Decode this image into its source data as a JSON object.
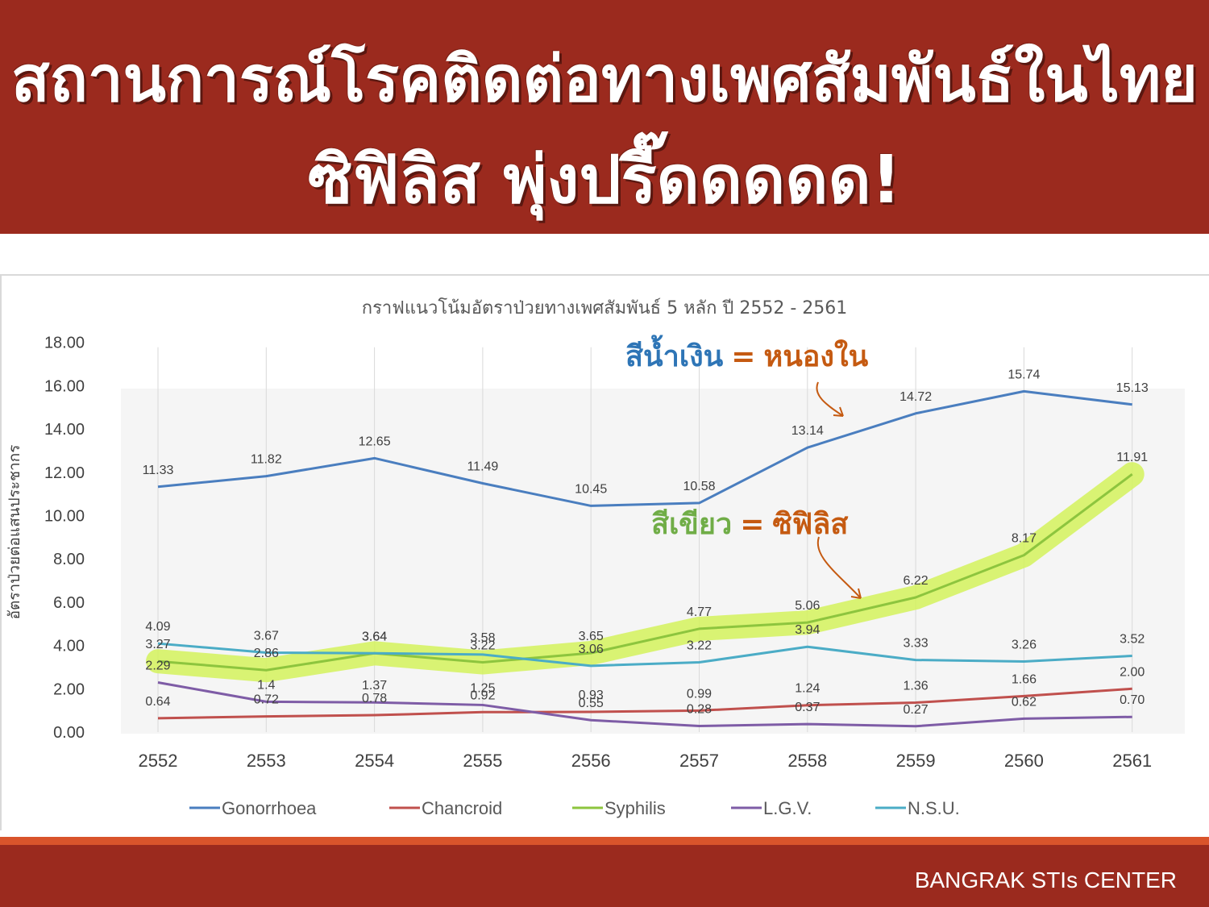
{
  "header": {
    "line1": "สถานการณ์โรคติดต่อทางเพศสัมพันธ์ในไทย",
    "line2": "ซิฟิลิส พุ่งปรี๊ดดดดด!"
  },
  "footer": {
    "text": "BANGRAK STIs CENTER"
  },
  "annotations": {
    "blue_prefix": "สีน้ำเงิน",
    "blue_eq": "=",
    "blue_name": "หนองใน",
    "green_prefix": "สีเขียว",
    "green_eq": "=",
    "green_name": "ซิฟิลิส"
  },
  "colors": {
    "banner": "#9b2a1e",
    "accent_stripe": "#d9542b",
    "annotation_blue": "#2e75b6",
    "annotation_orange": "#c55a11",
    "annotation_green": "#70ad47",
    "highlight": "#d4f25c"
  },
  "chart_data": {
    "type": "line",
    "title": "กราฟแนวโน้มอัตราป่วยทางเพศสัมพันธ์ 5 หลัก ปี 2552 - 2561",
    "ylabel": "อัตราป่วยต่อแสนประชากร",
    "xlabel": "",
    "categories": [
      "2552",
      "2553",
      "2554",
      "2555",
      "2556",
      "2557",
      "2558",
      "2559",
      "2560",
      "2561"
    ],
    "ylim": [
      0,
      18
    ],
    "yticks": [
      "0.00",
      "2.00",
      "4.00",
      "6.00",
      "8.00",
      "10.00",
      "12.00",
      "14.00",
      "16.00",
      "18.00"
    ],
    "grid": "vertical",
    "legend_position": "bottom",
    "highlighted_series": "Syphilis",
    "series": [
      {
        "name": "Gonorrhoea",
        "color": "#4a7ebf",
        "values": [
          11.33,
          11.82,
          12.65,
          11.49,
          10.45,
          10.58,
          13.14,
          14.72,
          15.74,
          15.13
        ],
        "labels": [
          "11.33",
          "11.82",
          "12.65",
          "11.49",
          "10.45",
          "10.58",
          "13.14",
          "14.72",
          "15.74",
          "15.13"
        ]
      },
      {
        "name": "Chancroid",
        "color": "#c0504d",
        "values": [
          0.64,
          0.72,
          0.78,
          0.92,
          0.93,
          0.99,
          1.24,
          1.36,
          1.66,
          2.0
        ],
        "labels": [
          "0.64",
          "0.72",
          "0.78",
          "0.92",
          "0.93",
          "0.99",
          "1.24",
          "1.36",
          "1.66",
          "2.00"
        ]
      },
      {
        "name": "Syphilis",
        "color": "#8dc53e",
        "values": [
          3.27,
          2.86,
          3.64,
          3.22,
          3.65,
          4.77,
          5.06,
          6.22,
          8.17,
          11.91
        ],
        "labels": [
          "3.27",
          "2.86",
          "3.64",
          "3.22",
          "3.65",
          "4.77",
          "5.06",
          "6.22",
          "8.17",
          "11.91"
        ]
      },
      {
        "name": "L.G.V.",
        "color": "#7e5ca6",
        "values": [
          2.29,
          1.4,
          1.37,
          1.25,
          0.55,
          0.28,
          0.37,
          0.27,
          0.62,
          0.7
        ],
        "labels": [
          "2.29",
          "1.4",
          "1.37",
          "1.25",
          "0.55",
          "0.28",
          "0.37",
          "0.27",
          "0.62",
          "0.70"
        ]
      },
      {
        "name": "N.S.U.",
        "color": "#4bacc6",
        "values": [
          4.09,
          3.67,
          3.64,
          3.58,
          3.06,
          3.22,
          3.94,
          3.33,
          3.26,
          3.52
        ],
        "labels": [
          "4.09",
          "3.67",
          "3.64",
          "3.58",
          "3.06",
          "3.22",
          "3.94",
          "3.33",
          "3.26",
          "3.52"
        ]
      }
    ]
  }
}
